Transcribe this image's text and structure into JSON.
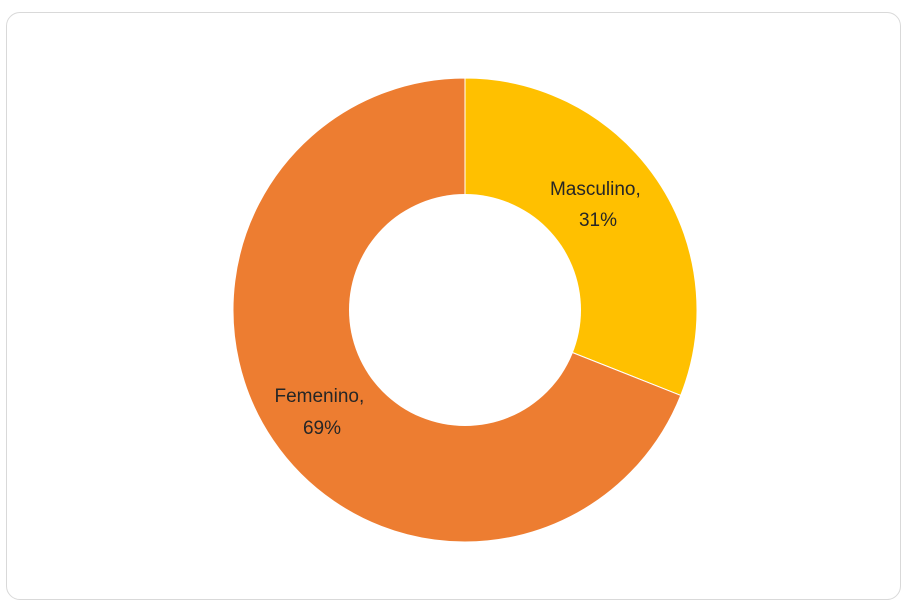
{
  "chart_data": {
    "type": "pie",
    "variant": "donut",
    "title": "",
    "slices": [
      {
        "name": "Masculino",
        "label": "Masculino,",
        "pct_label": "31%",
        "value": 31,
        "color": "#FFC000"
      },
      {
        "name": "Femenino",
        "label": "Femenino,",
        "pct_label": "69%",
        "value": 69,
        "color": "#ED7D31"
      }
    ],
    "legend": "none",
    "data_labels": "category-and-percent"
  }
}
